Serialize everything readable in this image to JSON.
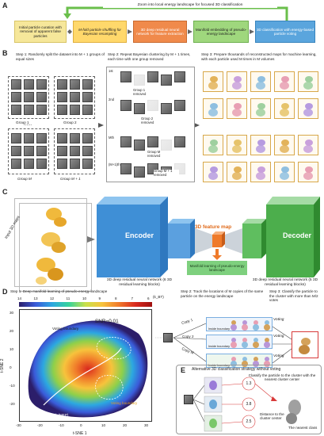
{
  "panel_a": {
    "letter": "A",
    "zoom_text": "Zoom into local energy landscape for focused 3D classification",
    "boxes": [
      "Initial particle curation with removal of apparent false particles",
      "M-fold particle shuffling for Bayesian resampling",
      "3D deep residual neural network for feature extraction",
      "Manifold embedding of pseudo-energy landscape",
      "3D classification with energy-based particle voting"
    ]
  },
  "panel_b": {
    "letter": "B",
    "step1": "Step 1: Randomly split the dataset into M + 1 groups of equal sizes",
    "step2": "Step 2: Repeat Bayesian clustering by M + 1 times, each time with one group removed",
    "step3": "Step 3: Prepare thousands of reconstructed maps for machine learning, with each particle used M times in M volumes",
    "groups": [
      "Group 1",
      "Group 2",
      "Group M",
      "Group M + 1"
    ],
    "removed": [
      "Group 1 removed",
      "Group 2 removed",
      "Group M removed",
      "Group M + 1 removed"
    ],
    "rounds": [
      "1st",
      "2nd",
      "Mth",
      "(M+1)th"
    ]
  },
  "panel_c": {
    "letter": "C",
    "input_label": "Input 3D maps",
    "encoder": "Encoder",
    "decoder": "Decoder",
    "feature_map": "3D feature map",
    "manifold": "Manifold learning of pseudo-energy landscape",
    "enc_desc": "3D deep residual neural network (6 3D residual learning blocks)",
    "dec_desc": "3D deep residual neural network (5 3D residual learning blocks)"
  },
  "panel_d": {
    "letter": "D",
    "step1": "Step 1: Deep manifold learning of pseudo-energy landscape",
    "step2": "Step 2: Track the locations of M copies of the same particle on the energy landscape",
    "step3": "Step 3: Classify the particle to the cluster with more than M/2 votes",
    "colorbar_ticks": [
      "14",
      "13",
      "12",
      "11",
      "10",
      "9",
      "8",
      "7",
      "6"
    ],
    "colorbar_unit": "(k_BT)",
    "snr": "SNR=0.01",
    "voting_boundary": "Voting boundary",
    "mep": "Minimum energy path (MEP)",
    "xlabel": "t-SNE 1",
    "ylabel": "t-SNE 2",
    "xticks": [
      "-30",
      "-20",
      "-10",
      "0",
      "10",
      "20",
      "30"
    ],
    "yticks": [
      "30",
      "20",
      "10",
      "0",
      "-10",
      "-20"
    ],
    "copies": [
      "Copy 1",
      "Copy 2",
      "Copy M"
    ],
    "inside": [
      "Inside boundary",
      "Inside boundary",
      "Inside boundary"
    ],
    "voting": [
      "Voting",
      "Voting",
      "Voting"
    ]
  },
  "panel_e": {
    "letter": "E",
    "title": "Alternative 3D classification strategy without voting",
    "desc": "Classify the particle to the cluster with the nearest cluster center",
    "distances": [
      "1.3",
      "3.8",
      "2.5"
    ],
    "distance_label": "Distance to the cluster center",
    "nearest": "The nearest class"
  },
  "colors": {
    "a_yellow": "#f6e79a",
    "a_gold": "#ffd86b",
    "a_orange": "#f08a4b",
    "a_green": "#9fd77d",
    "a_blue": "#5aa5dd",
    "encoder_blue": "#3f8fd6",
    "decoder_green": "#4cae4c",
    "feature_orange": "#ef7a2a"
  }
}
